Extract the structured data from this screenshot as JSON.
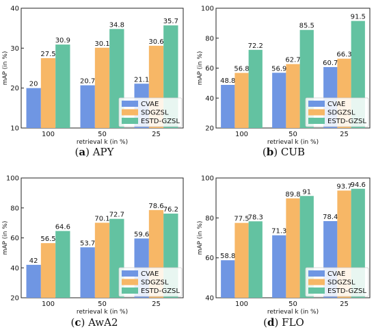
{
  "colors": {
    "CVAE": "#6f96e3",
    "SDGZSL": "#f7b766",
    "ESTD-GZSL": "#63c2a1"
  },
  "chart_data": [
    {
      "type": "bar",
      "panel": "(a)",
      "caption_letter": "a",
      "caption_name": "APY",
      "categories": [
        "100",
        "50",
        "25"
      ],
      "series": [
        {
          "name": "CVAE",
          "values": [
            20,
            20.7,
            21.1
          ]
        },
        {
          "name": "SDGZSL",
          "values": [
            27.5,
            30.1,
            30.6
          ]
        },
        {
          "name": "ESTD-GZSL",
          "values": [
            30.9,
            34.8,
            35.7
          ]
        }
      ],
      "data_labels": [
        [
          "20",
          "20.7",
          "21.1"
        ],
        [
          "27.5",
          "30.1",
          "30.6"
        ],
        [
          "30.9",
          "34.8",
          "35.7"
        ]
      ],
      "xlabel": "retrieval k (in %)",
      "ylabel": "mAP (in %)",
      "ylim": [
        10,
        40
      ],
      "yticks": [
        "10",
        "20",
        "30",
        "40"
      ],
      "legend": "bottom-right"
    },
    {
      "type": "bar",
      "panel": "(b)",
      "caption_letter": "b",
      "caption_name": "CUB",
      "categories": [
        "100",
        "50",
        "25"
      ],
      "series": [
        {
          "name": "CVAE",
          "values": [
            48.8,
            56.9,
            60.7
          ]
        },
        {
          "name": "SDGZSL",
          "values": [
            56.8,
            62.7,
            66.3
          ]
        },
        {
          "name": "ESTD-GZSL",
          "values": [
            72.2,
            85.5,
            91.5
          ]
        }
      ],
      "data_labels": [
        [
          "48.8",
          "56.9",
          "60.7"
        ],
        [
          "56.8",
          "62.7",
          "66.3"
        ],
        [
          "72.2",
          "85.5",
          "91.5"
        ]
      ],
      "xlabel": "retrieval k (in %)",
      "ylabel": "mAP (in %)",
      "ylim": [
        20,
        100
      ],
      "yticks": [
        "20",
        "40",
        "60",
        "80",
        "100"
      ],
      "legend": "bottom-right"
    },
    {
      "type": "bar",
      "panel": "(c)",
      "caption_letter": "c",
      "caption_name": "AwA2",
      "categories": [
        "100",
        "50",
        "25"
      ],
      "series": [
        {
          "name": "CVAE",
          "values": [
            42,
            53.7,
            59.6
          ]
        },
        {
          "name": "SDGZSL",
          "values": [
            56.5,
            70.1,
            78.6
          ]
        },
        {
          "name": "ESTD-GZSL",
          "values": [
            64.6,
            72.7,
            76.2
          ]
        }
      ],
      "data_labels": [
        [
          "42",
          "53.7",
          "59.6"
        ],
        [
          "56.5",
          "70.1",
          "78.6"
        ],
        [
          "64.6",
          "72.7",
          "76.2"
        ]
      ],
      "xlabel": "retrieval k (in %)",
      "ylabel": "mAP (in %)",
      "ylim": [
        20,
        100
      ],
      "yticks": [
        "20",
        "40",
        "60",
        "80",
        "100"
      ],
      "legend": "bottom-right"
    },
    {
      "type": "bar",
      "panel": "(d)",
      "caption_letter": "d",
      "caption_name": "FLO",
      "categories": [
        "100",
        "50",
        "25"
      ],
      "series": [
        {
          "name": "CVAE",
          "values": [
            58.8,
            71.3,
            78.4
          ]
        },
        {
          "name": "SDGZSL",
          "values": [
            77.5,
            89.8,
            93.7
          ]
        },
        {
          "name": "ESTD-GZSL",
          "values": [
            78.3,
            91,
            94.6
          ]
        }
      ],
      "data_labels": [
        [
          "58.8",
          "71.3",
          "78.4"
        ],
        [
          "77.5",
          "89.8",
          "93.7"
        ],
        [
          "78.3",
          "91",
          "94.6"
        ]
      ],
      "xlabel": "retrieval k (in %)",
      "ylabel": "mAP (in %)",
      "ylim": [
        40,
        100
      ],
      "yticks": [
        "40",
        "60",
        "80",
        "100"
      ],
      "legend": "bottom-right"
    }
  ]
}
